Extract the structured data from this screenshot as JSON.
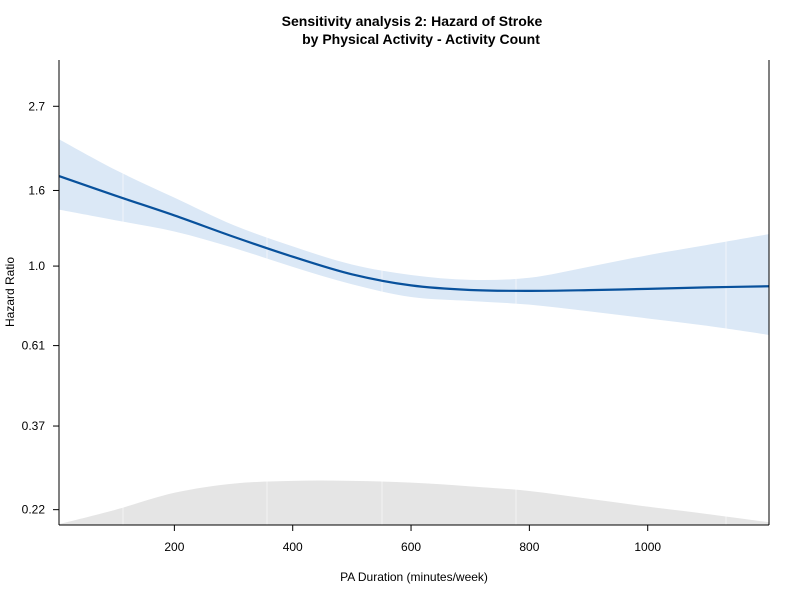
{
  "chart_data": {
    "type": "line",
    "title_lines": [
      "Sensitivity analysis 2: Hazard of Stroke",
      "by Physical Activity - Activity Count"
    ],
    "xlabel": "PA Duration (minutes/week)",
    "ylabel": "Hazard Ratio",
    "xlim": [
      5,
      1205
    ],
    "ylim": [
      0.2,
      3.6
    ],
    "y_scale": "log",
    "x_ticks": [
      200,
      400,
      600,
      800,
      1000
    ],
    "y_ticks": [
      {
        "value": 0.22,
        "label": "0.22"
      },
      {
        "value": 0.37,
        "label": "0.37"
      },
      {
        "value": 0.61,
        "label": "0.61"
      },
      {
        "value": 1.0,
        "label": "1.0"
      },
      {
        "value": 1.6,
        "label": "1.6"
      },
      {
        "value": 2.7,
        "label": "2.7"
      }
    ],
    "grid": false,
    "series": [
      {
        "role": "estimate",
        "color": "#08519c",
        "x": [
          5,
          100,
          200,
          300,
          400,
          500,
          600,
          700,
          800,
          900,
          1000,
          1100,
          1205
        ],
        "y": [
          1.75,
          1.55,
          1.37,
          1.2,
          1.06,
          0.95,
          0.887,
          0.862,
          0.857,
          0.861,
          0.868,
          0.876,
          0.882
        ]
      }
    ],
    "confidence_band": {
      "color": "#dbe8f6",
      "x": [
        5,
        100,
        200,
        300,
        400,
        500,
        600,
        700,
        800,
        900,
        1000,
        1100,
        1205
      ],
      "lower": [
        1.42,
        1.33,
        1.24,
        1.12,
        0.995,
        0.893,
        0.825,
        0.805,
        0.787,
        0.755,
        0.722,
        0.69,
        0.652
      ],
      "upper": [
        2.2,
        1.82,
        1.53,
        1.29,
        1.13,
        1.01,
        0.946,
        0.918,
        0.93,
        0.995,
        1.07,
        1.14,
        1.22
      ]
    },
    "density": {
      "color": "#e5e5e5",
      "x": [
        5,
        100,
        200,
        300,
        400,
        500,
        600,
        700,
        800,
        900,
        1000,
        1100,
        1205
      ],
      "relative_height": [
        0.02,
        0.33,
        0.7,
        0.9,
        0.96,
        0.96,
        0.92,
        0.84,
        0.74,
        0.57,
        0.4,
        0.24,
        0.06
      ]
    }
  }
}
